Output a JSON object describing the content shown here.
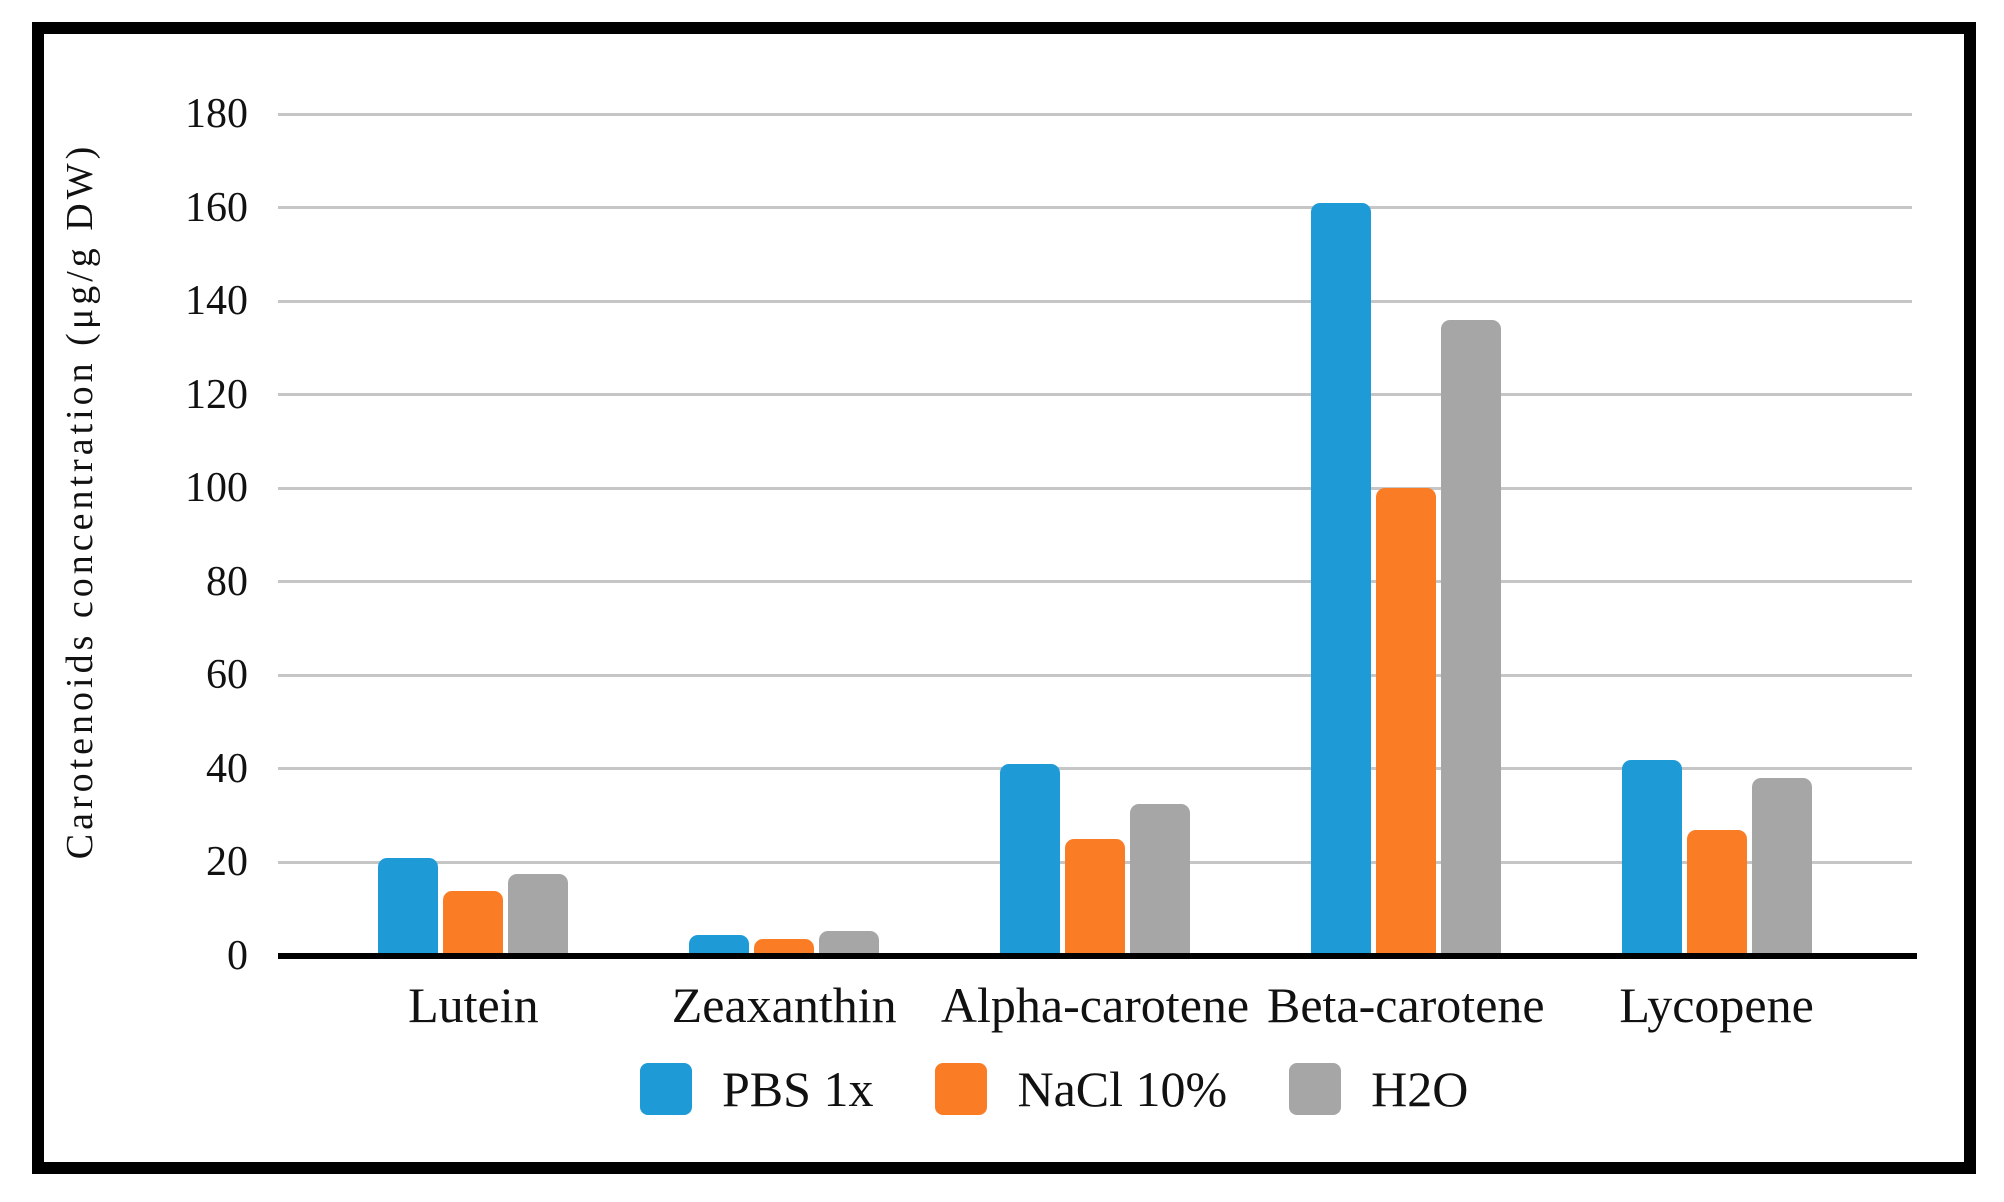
{
  "chart_data": {
    "type": "bar",
    "title": "",
    "xlabel": "",
    "ylabel": "Carotenoids concentration (μg/g DW)",
    "categories": [
      "Lutein",
      "Zeaxanthin",
      "Alpha-carotene",
      "Beta-carotene",
      "Lycopene"
    ],
    "series": [
      {
        "name": "PBS 1x",
        "color": "#1E9BD7",
        "values": [
          21,
          4.5,
          41,
          161,
          42
        ]
      },
      {
        "name": "NaCl 10%",
        "color": "#FA7D26",
        "values": [
          14,
          3.6,
          25,
          100,
          27
        ]
      },
      {
        "name": "H2O",
        "color": "#A6A6A6",
        "values": [
          17.5,
          5.3,
          32.5,
          136,
          38
        ]
      }
    ],
    "ylim": [
      0,
      180
    ],
    "ytick_step": 20,
    "yticks": [
      0,
      20,
      40,
      60,
      80,
      100,
      120,
      140,
      160,
      180
    ],
    "grid": true,
    "legend_position": "bottom"
  },
  "colors": {
    "background": "#FFFFFF",
    "frame_border": "#000000",
    "gridline": "#C6C6C6",
    "axis_line": "#000000",
    "text": "#111111"
  }
}
